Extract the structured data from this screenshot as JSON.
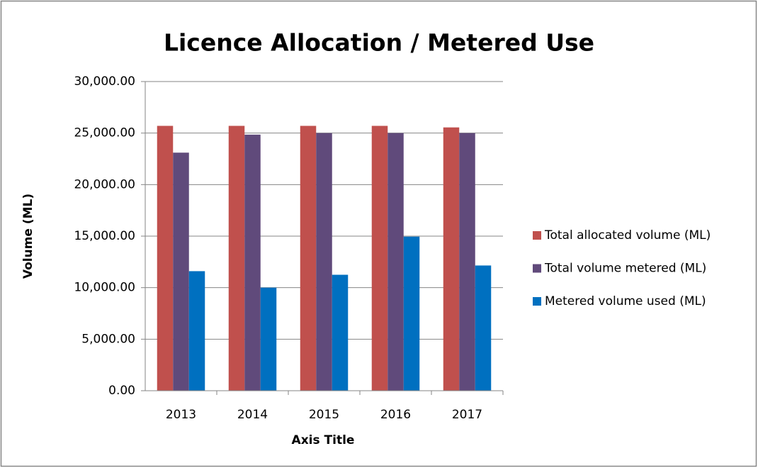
{
  "chart_data": {
    "type": "bar",
    "title": "Licence Allocation / Metered Use",
    "x_label": "Axis Title",
    "y_label": "Volume (ML)",
    "categories": [
      "2013",
      "2014",
      "2015",
      "2016",
      "2017"
    ],
    "series": [
      {
        "name": "Total allocated volume (ML)",
        "color": "#c0504d",
        "values": [
          25700,
          25700,
          25700,
          25700,
          25550
        ]
      },
      {
        "name": "Total volume metered (ML)",
        "color": "#604a7b",
        "values": [
          23100,
          24850,
          25000,
          25000,
          25000
        ]
      },
      {
        "name": "Metered volume used (ML)",
        "color": "#0070c0",
        "values": [
          11600,
          10000,
          11250,
          14950,
          12150
        ]
      }
    ],
    "ylim": [
      0,
      30000
    ],
    "yticks": [
      {
        "value": 0,
        "label": "0.00"
      },
      {
        "value": 5000,
        "label": "5,000.00"
      },
      {
        "value": 10000,
        "label": "10,000.00"
      },
      {
        "value": 15000,
        "label": "15,000.00"
      },
      {
        "value": 20000,
        "label": "20,000.00"
      },
      {
        "value": 25000,
        "label": "25,000.00"
      },
      {
        "value": 30000,
        "label": "30,000.00"
      }
    ],
    "grid": true,
    "legend": "right"
  }
}
